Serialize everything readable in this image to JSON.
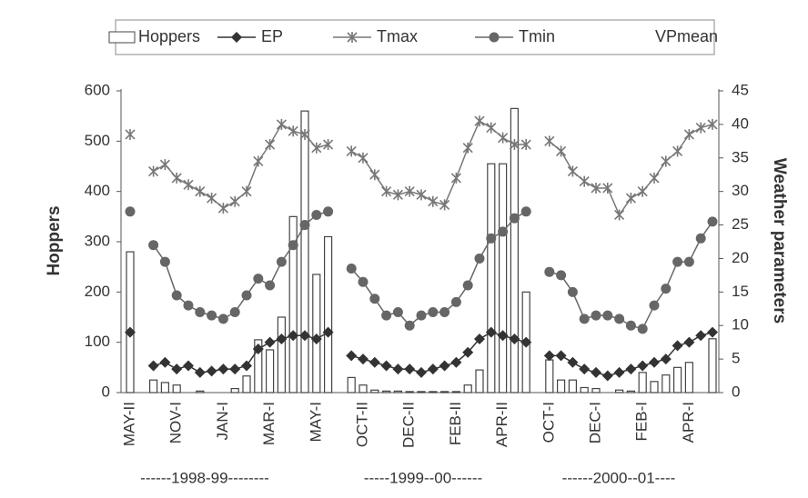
{
  "chart_data": {
    "type": "bar",
    "y_label": "Hoppers",
    "y2_label": "Weather parameters",
    "ylim": [
      0,
      600
    ],
    "yticks": [
      0,
      100,
      200,
      300,
      400,
      500,
      600
    ],
    "y2lim": [
      0,
      45
    ],
    "y2ticks": [
      0,
      5,
      10,
      15,
      20,
      25,
      30,
      35,
      40,
      45
    ],
    "periods": [
      "------1998-99--------",
      "-----1999--00------",
      "------2000--01----"
    ],
    "categories": [
      "MAY-II",
      null,
      null,
      null,
      "NOV-I",
      null,
      null,
      null,
      "JAN-I",
      null,
      null,
      null,
      "MAR-I",
      null,
      null,
      null,
      "MAY-I",
      null,
      null,
      null,
      "OCT-II",
      null,
      null,
      null,
      "DEC-II",
      null,
      null,
      null,
      "FEB-II",
      null,
      null,
      null,
      "APR-II",
      null,
      null,
      null,
      "OCT-I",
      null,
      null,
      null,
      "DEC-I",
      null,
      null,
      null,
      "FEB-I",
      null,
      null,
      null,
      "APR-I",
      null,
      null
    ],
    "series": [
      {
        "name": "Hoppers",
        "kind": "bar",
        "color": "#444444",
        "axis": "y",
        "values": [
          280,
          null,
          25,
          20,
          15,
          0,
          3,
          0,
          0,
          8,
          33,
          105,
          85,
          150,
          350,
          560,
          235,
          310,
          null,
          30,
          15,
          5,
          3,
          3,
          2,
          2,
          2,
          2,
          2,
          15,
          45,
          455,
          455,
          565,
          200,
          null,
          65,
          25,
          25,
          10,
          8,
          0,
          5,
          3,
          40,
          22,
          35,
          50,
          60,
          0,
          107
        ]
      },
      {
        "name": "EP",
        "kind": "line",
        "marker": "diamond",
        "color": "#333333",
        "axis": "y2",
        "values": [
          9,
          null,
          4,
          4.5,
          3.5,
          4,
          3,
          3.2,
          3.5,
          3.5,
          4,
          6.5,
          7.5,
          8,
          8.5,
          8.5,
          8,
          9,
          null,
          5.5,
          5,
          4.5,
          4,
          3.5,
          3.5,
          3,
          3.5,
          4,
          4.5,
          6,
          8,
          9,
          8.5,
          8,
          7.5,
          null,
          5.5,
          5.5,
          4.5,
          3.5,
          3,
          2.5,
          3,
          3.5,
          4,
          4.5,
          5,
          7,
          7.5,
          8.5,
          9
        ]
      },
      {
        "name": "Tmax",
        "kind": "line",
        "marker": "star",
        "color": "#777777",
        "axis": "y2",
        "values": [
          38.5,
          null,
          33,
          34,
          32,
          31,
          30,
          29,
          27.5,
          28.5,
          30,
          34.5,
          37,
          40,
          39,
          38.5,
          36.5,
          37,
          null,
          36,
          35,
          32.5,
          30,
          29.5,
          30,
          29.5,
          28.5,
          28,
          32,
          36.5,
          40.5,
          39.5,
          38,
          37,
          37,
          null,
          37.5,
          36,
          33,
          31.5,
          30.5,
          30.5,
          26.5,
          29,
          30,
          32,
          34.5,
          36,
          38.5,
          39.5,
          40
        ]
      },
      {
        "name": "Tmin",
        "kind": "line",
        "marker": "circle",
        "color": "#666666",
        "axis": "y2",
        "values": [
          27,
          null,
          22,
          19.5,
          14.5,
          13,
          12,
          11.5,
          11,
          12,
          14.5,
          17,
          16,
          19.5,
          22,
          25,
          26.5,
          27,
          null,
          18.5,
          16.5,
          14,
          11.5,
          12,
          10,
          11.5,
          12,
          12,
          13.5,
          16,
          20,
          23,
          24,
          26,
          27,
          null,
          18,
          17.5,
          15,
          11,
          11.5,
          11.5,
          11,
          10,
          9.5,
          13,
          15.5,
          19.5,
          19.5,
          23,
          25.5
        ]
      },
      {
        "name": "VPmean",
        "kind": "line",
        "marker": "none",
        "color": "#ffffff",
        "axis": "y2",
        "values": [
          null,
          null,
          null,
          null,
          null,
          null,
          null,
          null,
          null,
          null,
          null,
          null,
          null,
          null,
          null,
          null,
          null,
          null,
          null,
          null,
          null,
          null,
          null,
          null,
          null,
          null,
          null,
          null,
          null,
          null,
          null,
          null,
          null,
          null,
          null,
          null,
          null,
          null,
          null,
          null,
          null,
          null,
          null,
          null,
          null,
          null,
          null,
          null,
          null,
          null,
          null
        ]
      }
    ]
  }
}
